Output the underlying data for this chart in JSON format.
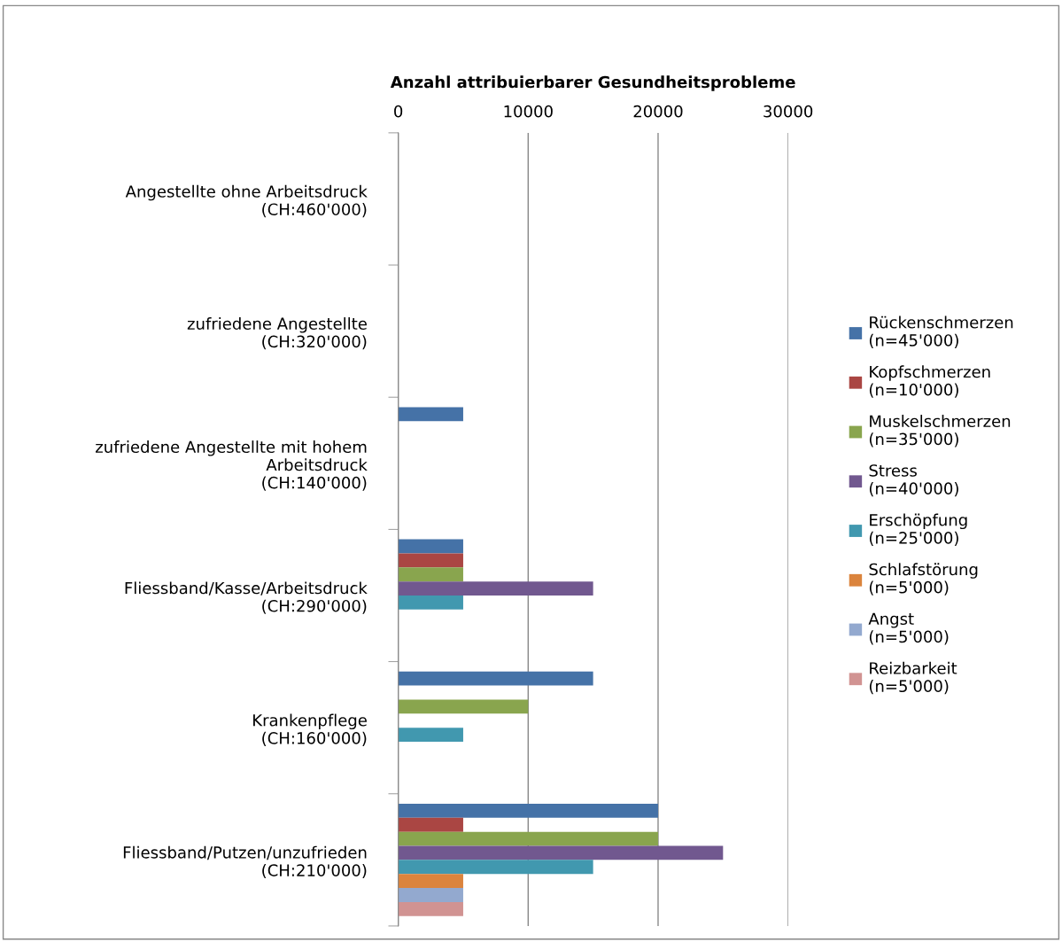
{
  "chart_data": {
    "type": "bar",
    "orientation": "horizontal",
    "xlabel": "Anzahl attribuierbarer Gesundheitsprobleme",
    "categories": [
      "Angestellte ohne Arbeitsdruck\n(CH:460'000)",
      "zufriedene Angestellte\n(CH:320'000)",
      "zufriedene Angestellte mit hohem\nArbeitsdruck\n(CH:140'000)",
      "Fliessband/Kasse/Arbeitsdruck\n(CH:290'000)",
      "Krankenpflege\n(CH:160'000)",
      "Fliessband/Putzen/unzufrieden\n(CH:210'000)"
    ],
    "series": [
      {
        "name": "Rückenschmerzen\n(n=45'000)",
        "color": "#4572a7",
        "values": [
          0,
          0,
          5000,
          5000,
          15000,
          20000
        ]
      },
      {
        "name": "Kopfschmerzen\n(n=10'000)",
        "color": "#aa4643",
        "values": [
          0,
          0,
          0,
          5000,
          0,
          5000
        ]
      },
      {
        "name": "Muskelschmerzen\n(n=35'000)",
        "color": "#89a54e",
        "values": [
          0,
          0,
          0,
          5000,
          10000,
          20000
        ]
      },
      {
        "name": "Stress\n(n=40'000)",
        "color": "#71588f",
        "values": [
          0,
          0,
          0,
          15000,
          0,
          25000
        ]
      },
      {
        "name": "Erschöpfung\n(n=25'000)",
        "color": "#4198af",
        "values": [
          0,
          0,
          0,
          5000,
          5000,
          15000
        ]
      },
      {
        "name": "Schlafstörung\n(n=5'000)",
        "color": "#db843d",
        "values": [
          0,
          0,
          0,
          0,
          0,
          5000
        ]
      },
      {
        "name": "Angst\n(n=5'000)",
        "color": "#93a9cf",
        "values": [
          0,
          0,
          0,
          0,
          0,
          5000
        ]
      },
      {
        "name": "Reizbarkeit\n(n=5'000)",
        "color": "#d19392",
        "values": [
          0,
          0,
          0,
          0,
          0,
          5000
        ]
      }
    ],
    "xlim": [
      0,
      30000
    ],
    "xticks": [
      0,
      10000,
      20000,
      30000
    ],
    "grid": "x",
    "legend": "right"
  }
}
